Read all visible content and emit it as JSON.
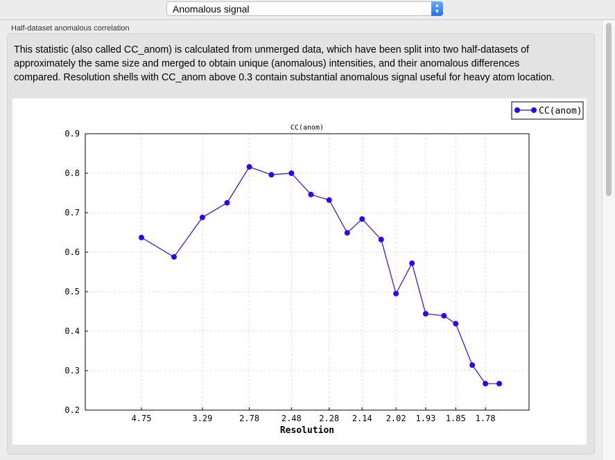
{
  "toolbar": {
    "selected_view": "Anomalous signal",
    "select_icon": "up-down-chevron-icon"
  },
  "group": {
    "title": "Half-dataset anomalous correlation",
    "description": "This statistic (also called CC_anom) is calculated from unmerged data, which have been split into two half-datasets of approximately the same size and merged to obtain unique (anomalous) intensities, and their anomalous differences compared.  Resolution shells with CC_anom above 0.3 contain substantial anomalous signal useful for heavy atom location."
  },
  "chart_data": {
    "type": "line",
    "title": "CC(anom)",
    "xlabel": "Resolution",
    "ylabel": "",
    "x_scale": "reciprocal-square (1/d^2), labelled in resolution",
    "ylim": [
      0.2,
      0.9
    ],
    "yticks": [
      "0.2",
      "0.3",
      "0.4",
      "0.5",
      "0.6",
      "0.7",
      "0.8",
      "0.9"
    ],
    "xticks": [
      "4.75",
      "3.29",
      "2.78",
      "2.48",
      "2.28",
      "2.14",
      "2.02",
      "1.93",
      "1.85",
      "1.78"
    ],
    "grid": true,
    "legend": "top-right",
    "series": [
      {
        "name": "CC(anom)",
        "color": "#3300ff",
        "x": [
          4.75,
          3.78,
          3.29,
          2.99,
          2.78,
          2.61,
          2.48,
          2.37,
          2.28,
          2.2,
          2.14,
          2.07,
          2.02,
          1.97,
          1.93,
          1.88,
          1.85,
          1.81,
          1.78,
          1.75
        ],
        "y": [
          0.637,
          0.588,
          0.688,
          0.725,
          0.816,
          0.796,
          0.8,
          0.746,
          0.732,
          0.649,
          0.684,
          0.632,
          0.495,
          0.572,
          0.444,
          0.439,
          0.419,
          0.314,
          0.267,
          0.267
        ]
      }
    ]
  }
}
